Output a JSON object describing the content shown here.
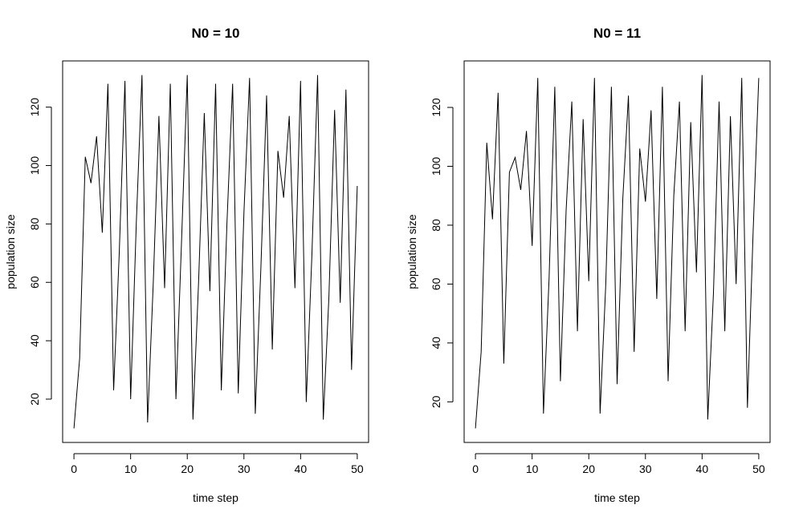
{
  "chart_data": [
    {
      "type": "line",
      "title": "N0 =  10",
      "xlabel": "time step",
      "ylabel": "population size",
      "xlim": [
        0,
        50
      ],
      "ylim": [
        10,
        131
      ],
      "xticks": [
        0,
        10,
        20,
        30,
        40,
        50
      ],
      "yticks": [
        20,
        40,
        60,
        80,
        100,
        120
      ],
      "grid": false,
      "series": [
        {
          "color": "#000000",
          "x": [
            0,
            1,
            2,
            3,
            4,
            5,
            6,
            7,
            8,
            9,
            10,
            11,
            12,
            13,
            14,
            15,
            16,
            17,
            18,
            19,
            20,
            21,
            22,
            23,
            24,
            25,
            26,
            27,
            28,
            29,
            30,
            31,
            32,
            33,
            34,
            35,
            36,
            37,
            38,
            39,
            40,
            41,
            42,
            43,
            44,
            45,
            46,
            47,
            48,
            49,
            50
          ],
          "y": [
            10,
            34,
            103,
            94,
            110,
            77,
            128,
            23,
            70,
            129,
            20,
            80,
            131,
            12,
            60,
            117,
            58,
            128,
            20,
            75,
            131,
            13,
            60,
            118,
            57,
            128,
            23,
            80,
            128,
            22,
            84,
            130,
            15,
            65,
            124,
            37,
            105,
            89,
            117,
            58,
            129,
            19,
            70,
            131,
            13,
            55,
            119,
            53,
            126,
            30,
            93
          ]
        }
      ]
    },
    {
      "type": "line",
      "title": "N0 =  11",
      "xlabel": "time step",
      "ylabel": "population size",
      "xlim": [
        0,
        50
      ],
      "ylim": [
        11,
        131
      ],
      "xticks": [
        0,
        10,
        20,
        30,
        40,
        50
      ],
      "yticks": [
        20,
        40,
        60,
        80,
        100,
        120
      ],
      "grid": false,
      "series": [
        {
          "color": "#000000",
          "x": [
            0,
            1,
            2,
            3,
            4,
            5,
            6,
            7,
            8,
            9,
            10,
            11,
            12,
            13,
            14,
            15,
            16,
            17,
            18,
            19,
            20,
            21,
            22,
            23,
            24,
            25,
            26,
            27,
            28,
            29,
            30,
            31,
            32,
            33,
            34,
            35,
            36,
            37,
            38,
            39,
            40,
            41,
            42,
            43,
            44,
            45,
            46,
            47,
            48,
            49,
            50
          ],
          "y": [
            11,
            37,
            108,
            82,
            125,
            33,
            98,
            103,
            92,
            112,
            73,
            130,
            16,
            62,
            127,
            27,
            85,
            122,
            44,
            116,
            61,
            130,
            16,
            60,
            127,
            26,
            89,
            124,
            37,
            106,
            88,
            119,
            55,
            127,
            27,
            90,
            122,
            44,
            115,
            64,
            131,
            14,
            57,
            122,
            44,
            117,
            60,
            130,
            18,
            77,
            130
          ]
        }
      ]
    }
  ]
}
